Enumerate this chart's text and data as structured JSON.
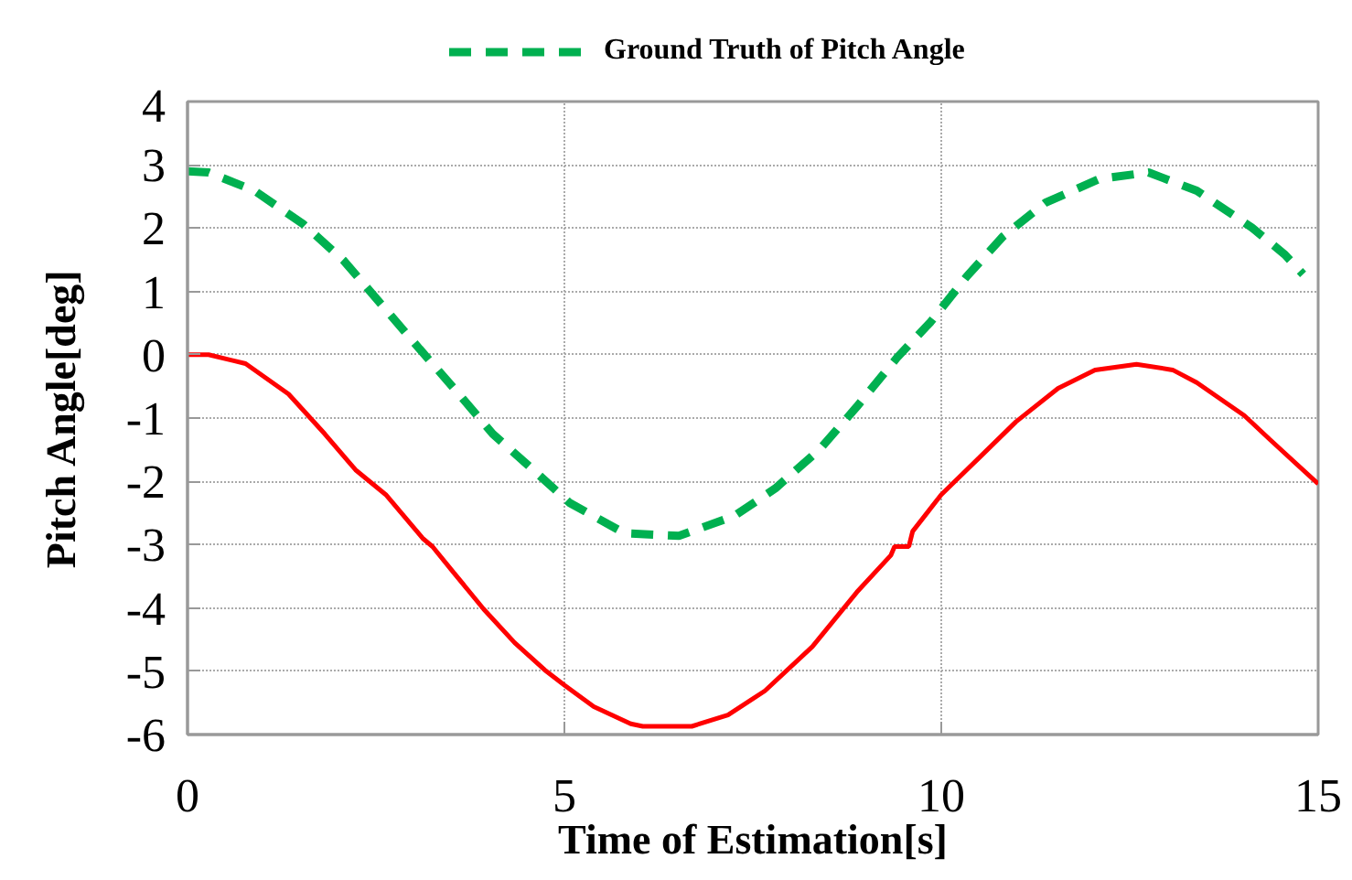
{
  "chart_data": {
    "type": "line",
    "xlabel": "Time of Estimation[s]",
    "ylabel": "Pitch Angle[deg]",
    "xlim": [
      0,
      15
    ],
    "ylim": [
      -6,
      4
    ],
    "xticks": [
      0,
      5,
      10,
      15
    ],
    "yticks": [
      -6,
      -5,
      -4,
      -3,
      -2,
      -1,
      0,
      1,
      2,
      3,
      4
    ],
    "grid": true,
    "legend": "top",
    "series": [
      {
        "name": "Ground Truth of Pitch Angle",
        "color": "#00b050",
        "line_style": "dashed",
        "x": [
          0,
          0.28,
          0.89,
          1.54,
          2.07,
          2.59,
          3.08,
          3.57,
          4.05,
          4.54,
          5.07,
          5.8,
          6.52,
          7.25,
          7.8,
          8.39,
          8.88,
          9.41,
          9.86,
          10.34,
          10.82,
          11.38,
          12.1,
          12.75,
          13.39,
          14.12,
          14.56,
          14.8
        ],
        "values": [
          2.9,
          2.88,
          2.59,
          2.06,
          1.49,
          0.77,
          0.09,
          -0.58,
          -1.25,
          -1.77,
          -2.34,
          -2.82,
          -2.86,
          -2.55,
          -2.11,
          -1.49,
          -0.82,
          -0.05,
          0.52,
          1.24,
          1.87,
          2.4,
          2.78,
          2.88,
          2.59,
          2.01,
          1.58,
          1.27
        ]
      },
      {
        "color": "#ff0000",
        "line_style": "solid",
        "x": [
          0,
          0.28,
          0.77,
          1.34,
          1.82,
          2.23,
          2.63,
          3.12,
          3.25,
          3.53,
          3.93,
          4.34,
          4.74,
          5.0,
          5.39,
          5.88,
          6.04,
          6.69,
          7.17,
          7.66,
          8.29,
          8.88,
          9.33,
          9.38,
          9.57,
          9.62,
          10,
          10.5,
          10.99,
          11.55,
          12.04,
          12.59,
          13.07,
          13.39,
          14.02,
          14.36,
          15
        ],
        "values": [
          0,
          0,
          -0.14,
          -0.62,
          -1.25,
          -1.82,
          -2.21,
          -2.9,
          -3.03,
          -3.44,
          -4.02,
          -4.55,
          -4.98,
          -5.22,
          -5.56,
          -5.83,
          -5.87,
          -5.87,
          -5.69,
          -5.31,
          -4.61,
          -3.75,
          -3.17,
          -3.03,
          -3.03,
          -2.79,
          -2.21,
          -1.63,
          -1.06,
          -0.53,
          -0.24,
          -0.15,
          -0.24,
          -0.44,
          -0.96,
          -1.34,
          -2.04
        ]
      }
    ]
  }
}
